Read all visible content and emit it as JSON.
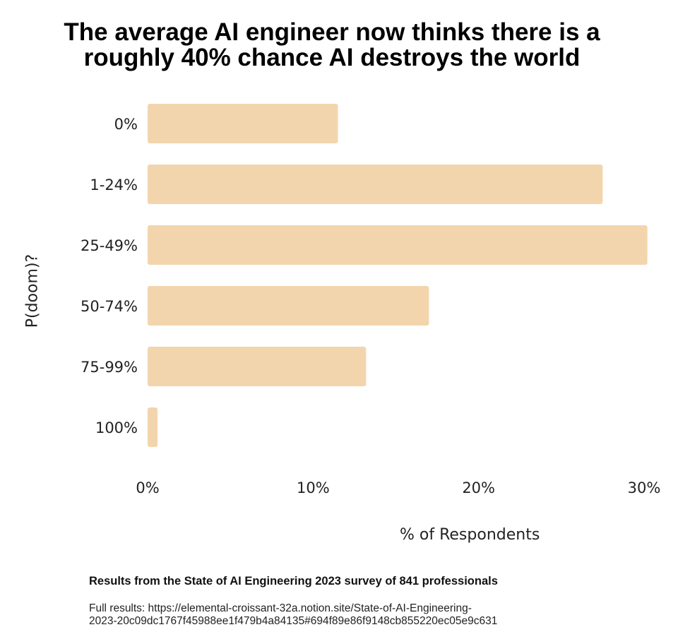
{
  "title_line1": "The average AI engineer now thinks there is a",
  "title_line2": "roughly 40% chance AI destroys the world",
  "source_note": "Results from the State of AI Engineering 2023 survey of 841 professionals",
  "full_results_line1": "Full results: https://elemental-croissant-32a.notion.site/State-of-AI-Engineering-",
  "full_results_line2": "2023-20c09dc1767f45988ee1f479b4a84135#694f89e86f9148cb855220ec05e9c631",
  "chart_data": {
    "type": "bar",
    "orientation": "horizontal",
    "xlabel": "% of Respondents",
    "ylabel": "P(doom)?",
    "categories": [
      "0%",
      "1-24%",
      "25-49%",
      "50-74%",
      "75-99%",
      "100%"
    ],
    "values": [
      11.5,
      27.5,
      30.2,
      17,
      13.2,
      0.6
    ],
    "xlim": [
      0,
      30
    ],
    "x_ticks": [
      0,
      10,
      20,
      30
    ],
    "x_tick_labels": [
      "0%",
      "10%",
      "20%",
      "30%"
    ],
    "bar_color": "#f3d5ad",
    "grid": false,
    "legend": "none"
  }
}
